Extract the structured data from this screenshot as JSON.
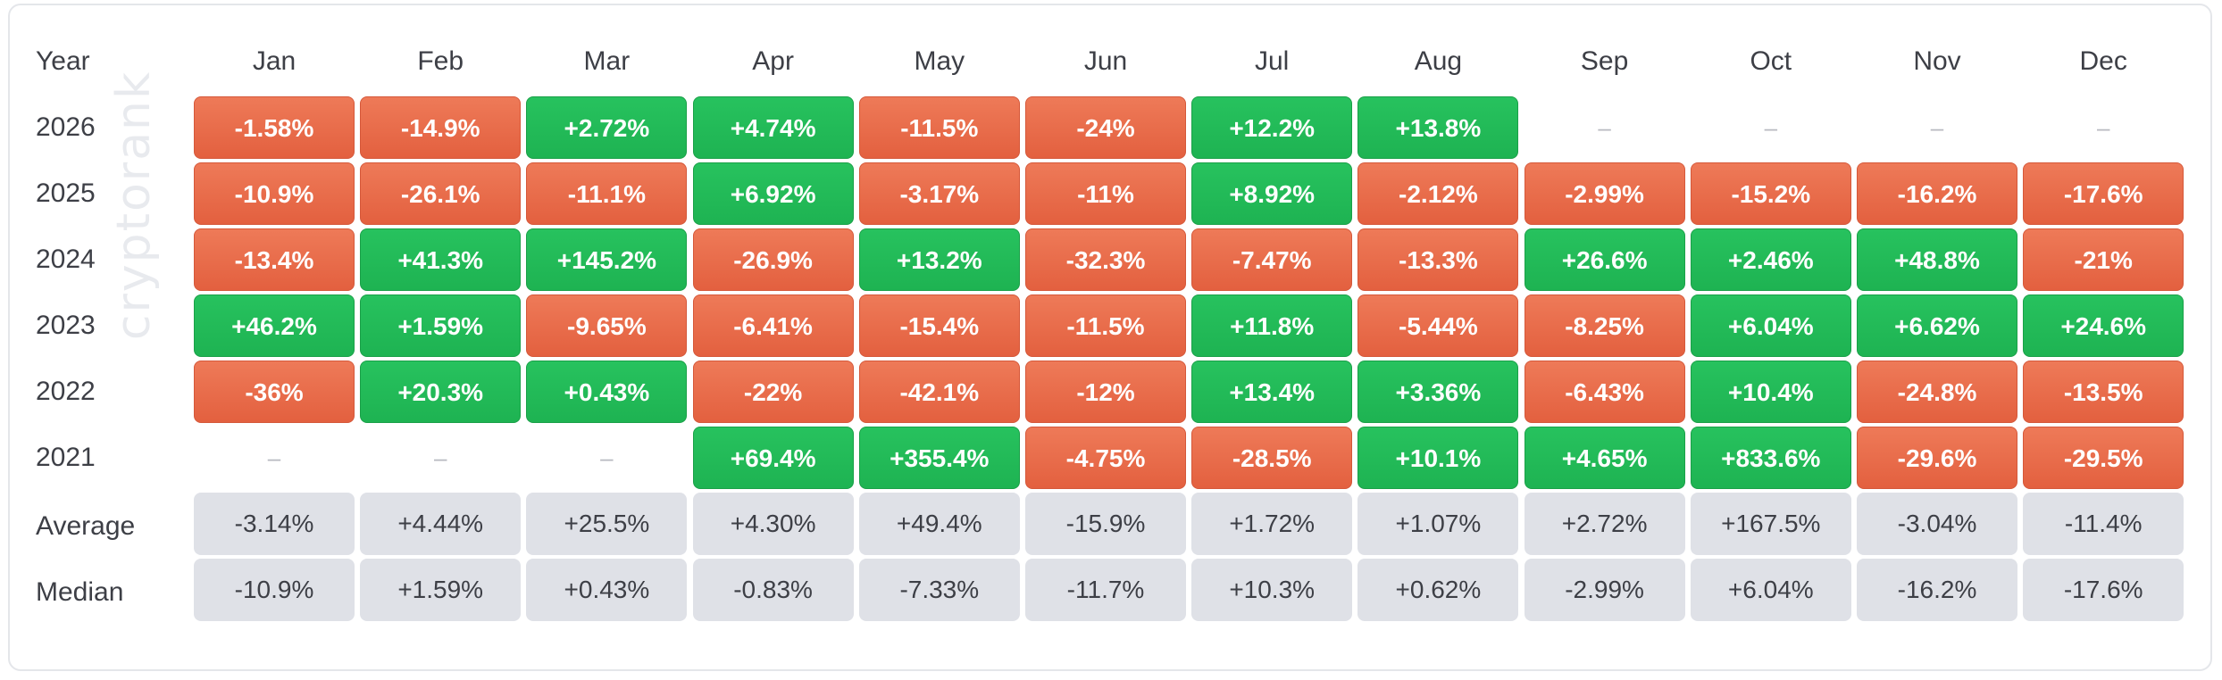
{
  "watermark": "cryptorank",
  "chart_data": {
    "type": "table",
    "corner_label": "Year",
    "months": [
      "Jan",
      "Feb",
      "Mar",
      "Apr",
      "May",
      "Jun",
      "Jul",
      "Aug",
      "Sep",
      "Oct",
      "Nov",
      "Dec"
    ],
    "years": [
      "2026",
      "2025",
      "2024",
      "2023",
      "2022",
      "2021"
    ],
    "rows": [
      {
        "label": "2026",
        "values": [
          "-1.58%",
          "-14.9%",
          "+2.72%",
          "+4.74%",
          "-11.5%",
          "-24%",
          "+12.2%",
          "+13.8%",
          "–",
          "–",
          "–",
          "–"
        ]
      },
      {
        "label": "2025",
        "values": [
          "-10.9%",
          "-26.1%",
          "-11.1%",
          "+6.92%",
          "-3.17%",
          "-11%",
          "+8.92%",
          "-2.12%",
          "-2.99%",
          "-15.2%",
          "-16.2%",
          "-17.6%"
        ]
      },
      {
        "label": "2024",
        "values": [
          "-13.4%",
          "+41.3%",
          "+145.2%",
          "-26.9%",
          "+13.2%",
          "-32.3%",
          "-7.47%",
          "-13.3%",
          "+26.6%",
          "+2.46%",
          "+48.8%",
          "-21%"
        ]
      },
      {
        "label": "2023",
        "values": [
          "+46.2%",
          "+1.59%",
          "-9.65%",
          "-6.41%",
          "-15.4%",
          "-11.5%",
          "+11.8%",
          "-5.44%",
          "-8.25%",
          "+6.04%",
          "+6.62%",
          "+24.6%"
        ]
      },
      {
        "label": "2022",
        "values": [
          "-36%",
          "+20.3%",
          "+0.43%",
          "-22%",
          "-42.1%",
          "-12%",
          "+13.4%",
          "+3.36%",
          "-6.43%",
          "+10.4%",
          "-24.8%",
          "-13.5%"
        ]
      },
      {
        "label": "2021",
        "values": [
          "–",
          "–",
          "–",
          "+69.4%",
          "+355.4%",
          "-4.75%",
          "-28.5%",
          "+10.1%",
          "+4.65%",
          "+833.6%",
          "-29.6%",
          "-29.5%"
        ]
      }
    ],
    "stats": [
      {
        "label": "Average",
        "values": [
          "-3.14%",
          "+4.44%",
          "+25.5%",
          "+4.30%",
          "+49.4%",
          "-15.9%",
          "+1.72%",
          "+1.07%",
          "+2.72%",
          "+167.5%",
          "-3.04%",
          "-11.4%"
        ]
      },
      {
        "label": "Median",
        "values": [
          "-10.9%",
          "+1.59%",
          "+0.43%",
          "-0.83%",
          "-7.33%",
          "-11.7%",
          "+10.3%",
          "+0.62%",
          "-2.99%",
          "+6.04%",
          "-16.2%",
          "-17.6%"
        ]
      }
    ],
    "colors": {
      "positive": "#22bb58",
      "negative": "#e8694a",
      "stat_bg": "#dfe1e7"
    }
  }
}
